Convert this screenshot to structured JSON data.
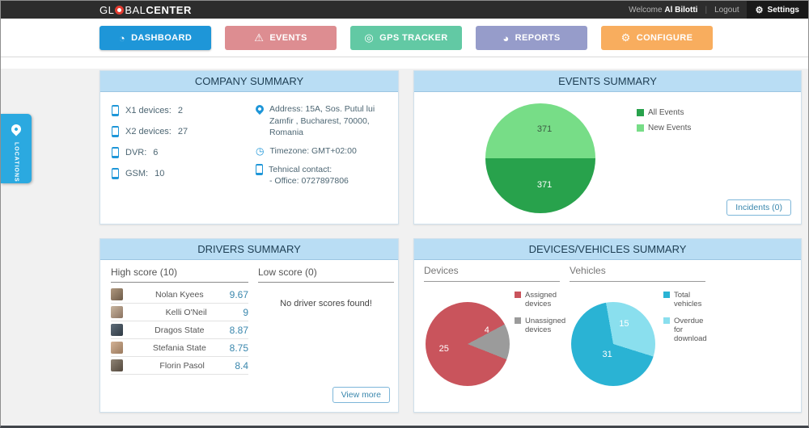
{
  "topbar": {
    "logo": {
      "part1": "GL",
      "part2": "BAL",
      "part3": "CENTER"
    },
    "welcome_label": "Welcome",
    "username": "Al Bilotti",
    "logout_label": "Logout",
    "settings_label": "Settings",
    "settings_icon": "⚙"
  },
  "nav": {
    "tabs": [
      {
        "label": "DASHBOARD",
        "glyph": "◔",
        "color": "#1e96d8",
        "active": true
      },
      {
        "label": "EVENTS",
        "glyph": "⚠",
        "color": "#dd8d91",
        "active": false
      },
      {
        "label": "GPS TRACKER",
        "glyph": "◎",
        "color": "#62c9a4",
        "active": false
      },
      {
        "label": "REPORTS",
        "glyph": "◕",
        "color": "#969cca",
        "active": false
      },
      {
        "label": "CONFIGURE",
        "glyph": "⚙",
        "color": "#f8ad5e",
        "active": false
      }
    ]
  },
  "locations_tab": {
    "label": "LOCATIONS"
  },
  "icons": {
    "clock": "◷"
  },
  "panels": {
    "company": {
      "title": "COMPANY SUMMARY",
      "devices": [
        {
          "label": "X1 devices:",
          "value": "2"
        },
        {
          "label": "X2 devices:",
          "value": "27"
        },
        {
          "label": "DVR:",
          "value": "6"
        },
        {
          "label": "GSM:",
          "value": "10"
        }
      ],
      "address_label": "Address:",
      "address_text": "15A, Sos. Putul lui Zamfir , Bucharest, 70000, Romania",
      "timezone_label": "Timezone:",
      "timezone_value": "GMT+02:00",
      "contact_label": "Tehnical contact:",
      "contact_value": "- Office: 0727897806"
    },
    "events": {
      "title": "EVENTS SUMMARY",
      "legend": [
        {
          "label": "All Events",
          "color": "#28a24c"
        },
        {
          "label": "New Events",
          "color": "#77dd87"
        }
      ],
      "incidents_button": "Incidents (0)"
    },
    "drivers": {
      "title": "DRIVERS SUMMARY",
      "high_header": "High score (10)",
      "low_header": "Low score (0)",
      "high_scores": [
        {
          "name": "Nolan Kyees",
          "score": "9.67"
        },
        {
          "name": "Kelli O'Neil",
          "score": "9"
        },
        {
          "name": "Dragos State",
          "score": "8.87"
        },
        {
          "name": "Stefania State",
          "score": "8.75"
        },
        {
          "name": "Florin Pasol",
          "score": "8.4"
        }
      ],
      "low_empty_text": "No driver scores found!",
      "view_more_button": "View more"
    },
    "devices_vehicles": {
      "title": "DEVICES/VEHICLES SUMMARY",
      "devices_header": "Devices",
      "vehicles_header": "Vehicles",
      "devices_legend": [
        {
          "label": "Assigned devices",
          "color": "#c9545c"
        },
        {
          "label": "Unassigned devices",
          "color": "#9b9b9b"
        }
      ],
      "vehicles_legend": [
        {
          "label": "Total vehicles",
          "color": "#2ab3d4"
        },
        {
          "label": "Overdue for download",
          "color": "#8adfee"
        }
      ]
    }
  },
  "chart_data": [
    {
      "type": "pie",
      "title": "Events Summary",
      "start_angle": 270,
      "slices": [
        {
          "label": "New Events",
          "value": 371,
          "color": "#77dd87"
        },
        {
          "label": "All Events",
          "value": 371,
          "color": "#28a24c"
        }
      ]
    },
    {
      "type": "pie",
      "title": "Devices",
      "start_angle": 62,
      "slices": [
        {
          "label": "Unassigned devices",
          "value": 4,
          "color": "#9b9b9b"
        },
        {
          "label": "Assigned devices",
          "value": 25,
          "color": "#c9545c"
        }
      ]
    },
    {
      "type": "pie",
      "title": "Vehicles",
      "start_angle": 350,
      "slices": [
        {
          "label": "Overdue for download",
          "value": 15,
          "color": "#8adfee"
        },
        {
          "label": "Total vehicles",
          "value": 31,
          "color": "#2ab3d4"
        }
      ]
    }
  ]
}
